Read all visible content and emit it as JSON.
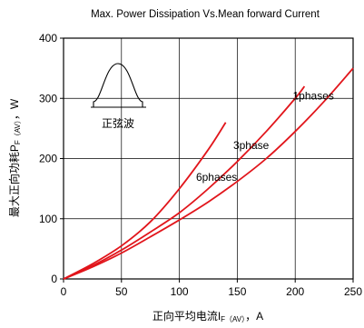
{
  "chart_data": {
    "type": "line",
    "title": "Max. Power Dissipation Vs.Mean forward Current",
    "xlabel": {
      "main": "正向平均电流I",
      "sub": "F（AV）",
      "unit": "，A"
    },
    "ylabel": {
      "main": "最大正向功耗P",
      "sub": "F（AV）",
      "unit": "，W"
    },
    "xlim": [
      0,
      250
    ],
    "ylim": [
      0,
      400
    ],
    "xticks": [
      0,
      50,
      100,
      150,
      200,
      250
    ],
    "yticks": [
      0,
      100,
      200,
      300,
      400
    ],
    "grid": true,
    "series": [
      {
        "name": "6phases",
        "x": [
          0,
          25,
          50,
          75,
          100,
          125,
          140
        ],
        "y": [
          0,
          25,
          55,
          95,
          150,
          215,
          260
        ]
      },
      {
        "name": "3phase",
        "x": [
          0,
          25,
          50,
          75,
          100,
          125,
          150,
          175,
          200,
          208
        ],
        "y": [
          0,
          22,
          48,
          78,
          110,
          150,
          195,
          245,
          300,
          320
        ]
      },
      {
        "name": "1phases",
        "x": [
          0,
          25,
          50,
          75,
          100,
          125,
          150,
          175,
          200,
          225,
          250
        ],
        "y": [
          0,
          20,
          43,
          70,
          98,
          128,
          162,
          200,
          245,
          295,
          350
        ]
      }
    ],
    "inset_label": "正弦波",
    "colors": {
      "series": "#e1151b",
      "axes": "#000000"
    }
  }
}
